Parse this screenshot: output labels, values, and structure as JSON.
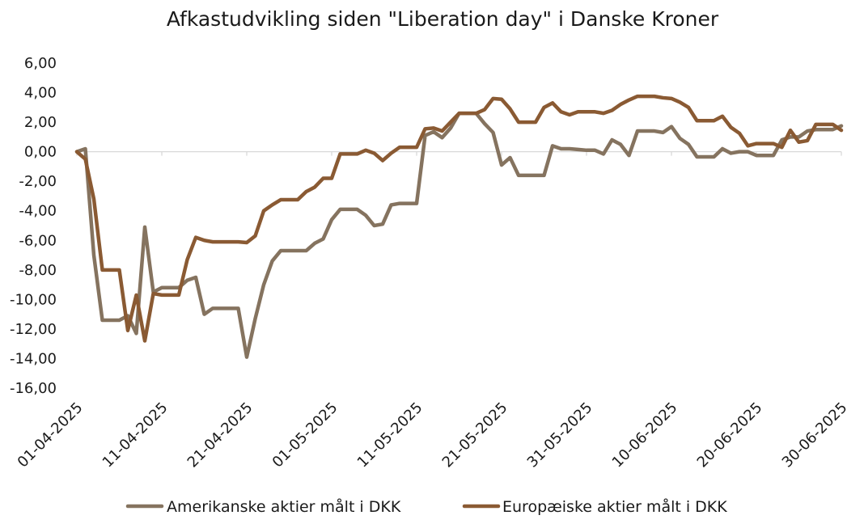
{
  "chart_data": {
    "type": "line",
    "title": "Afkastudvikling siden \"Liberation day\" i Danske Kroner",
    "xlabel": "",
    "ylabel": "",
    "ylim": [
      -16,
      6
    ],
    "yticks": [
      6,
      4,
      2,
      0,
      -2,
      -4,
      -6,
      -8,
      -10,
      -12,
      -14,
      -16
    ],
    "ytick_labels": [
      "6,00",
      "4,00",
      "2,00",
      "0,00",
      "-2,00",
      "-4,00",
      "-6,00",
      "-8,00",
      "-10,00",
      "-12,00",
      "-14,00",
      "-16,00"
    ],
    "xtick_labels": [
      "01-04-2025",
      "11-04-2025",
      "21-04-2025",
      "01-05-2025",
      "11-05-2025",
      "21-05-2025",
      "31-05-2025",
      "10-06-2025",
      "20-06-2025",
      "30-06-2025"
    ],
    "xtick_days": [
      0,
      10,
      20,
      30,
      40,
      50,
      60,
      70,
      80,
      90
    ],
    "grid": false,
    "legend_position": "bottom",
    "series": [
      {
        "name": "Amerikanske aktier målt i DKK",
        "color": "#85735f",
        "x": [
          0,
          1,
          2,
          3,
          4,
          5,
          6,
          7,
          8,
          9,
          10,
          11,
          12,
          13,
          14,
          15,
          16,
          17,
          18,
          19,
          20,
          21,
          22,
          23,
          24,
          25,
          26,
          27,
          28,
          29,
          30,
          31,
          32,
          33,
          34,
          35,
          36,
          37,
          38,
          39,
          40,
          41,
          42,
          43,
          44,
          45,
          46,
          47,
          48,
          49,
          50,
          51,
          52,
          53,
          54,
          55,
          56,
          57,
          58,
          59,
          60,
          61,
          62,
          63,
          64,
          65,
          66,
          67,
          68,
          69,
          70,
          71,
          72,
          73,
          74,
          75,
          76,
          77,
          78,
          79,
          80,
          81,
          82,
          83,
          84,
          85,
          86,
          87,
          88,
          89,
          90
        ],
        "values": [
          0.0,
          0.2,
          -7.0,
          -11.4,
          -11.4,
          -11.4,
          -11.1,
          -12.3,
          -5.1,
          -9.5,
          -9.2,
          -9.2,
          -9.2,
          -8.7,
          -8.5,
          -11.0,
          -10.6,
          -10.6,
          -10.6,
          -10.6,
          -13.9,
          -11.3,
          -9.0,
          -7.4,
          -6.7,
          -6.7,
          -6.7,
          -6.7,
          -6.2,
          -5.9,
          -4.6,
          -3.9,
          -3.9,
          -3.9,
          -4.3,
          -5.0,
          -4.9,
          -3.6,
          -3.5,
          -3.5,
          -3.5,
          1.1,
          1.35,
          0.95,
          1.6,
          2.6,
          2.6,
          2.6,
          1.9,
          1.3,
          -0.9,
          -0.4,
          -1.6,
          -1.6,
          -1.6,
          -1.6,
          0.4,
          0.2,
          0.2,
          0.15,
          0.1,
          0.1,
          -0.15,
          0.8,
          0.5,
          -0.25,
          1.4,
          1.4,
          1.4,
          1.3,
          1.7,
          0.9,
          0.5,
          -0.35,
          -0.35,
          -0.35,
          0.2,
          -0.1,
          0.0,
          0.0,
          -0.25,
          -0.25,
          -0.25,
          0.8,
          1.0,
          1.0,
          1.4,
          1.5,
          1.5,
          1.5,
          1.75
        ]
      },
      {
        "name": "Europæiske aktier målt i DKK",
        "color": "#8a5a33",
        "x": [
          0,
          1,
          2,
          3,
          4,
          5,
          6,
          7,
          8,
          9,
          10,
          11,
          12,
          13,
          14,
          15,
          16,
          17,
          18,
          19,
          20,
          21,
          22,
          23,
          24,
          25,
          26,
          27,
          28,
          29,
          30,
          31,
          32,
          33,
          34,
          35,
          36,
          37,
          38,
          39,
          40,
          41,
          42,
          43,
          44,
          45,
          46,
          47,
          48,
          49,
          50,
          51,
          52,
          53,
          54,
          55,
          56,
          57,
          58,
          59,
          60,
          61,
          62,
          63,
          64,
          65,
          66,
          67,
          68,
          69,
          70,
          71,
          72,
          73,
          74,
          75,
          76,
          77,
          78,
          79,
          80,
          81,
          82,
          83,
          84,
          85,
          86,
          87,
          88,
          89,
          90
        ],
        "values": [
          0.0,
          -0.5,
          -3.2,
          -8.0,
          -8.0,
          -8.0,
          -12.1,
          -9.7,
          -12.8,
          -9.6,
          -9.7,
          -9.7,
          -9.7,
          -7.3,
          -5.8,
          -6.0,
          -6.1,
          -6.1,
          -6.1,
          -6.1,
          -6.15,
          -5.7,
          -4.0,
          -3.6,
          -3.25,
          -3.25,
          -3.25,
          -2.7,
          -2.4,
          -1.8,
          -1.8,
          -0.15,
          -0.15,
          -0.15,
          0.1,
          -0.1,
          -0.6,
          -0.1,
          0.3,
          0.3,
          0.3,
          1.55,
          1.6,
          1.4,
          2.0,
          2.6,
          2.6,
          2.6,
          2.85,
          3.6,
          3.55,
          2.9,
          2.0,
          2.0,
          2.0,
          3.0,
          3.3,
          2.7,
          2.5,
          2.7,
          2.7,
          2.7,
          2.6,
          2.8,
          3.2,
          3.5,
          3.75,
          3.75,
          3.75,
          3.65,
          3.6,
          3.35,
          3.0,
          2.1,
          2.1,
          2.1,
          2.4,
          1.65,
          1.25,
          0.4,
          0.55,
          0.55,
          0.55,
          0.3,
          1.45,
          0.65,
          0.75,
          1.85,
          1.85,
          1.85,
          1.45
        ]
      }
    ]
  }
}
